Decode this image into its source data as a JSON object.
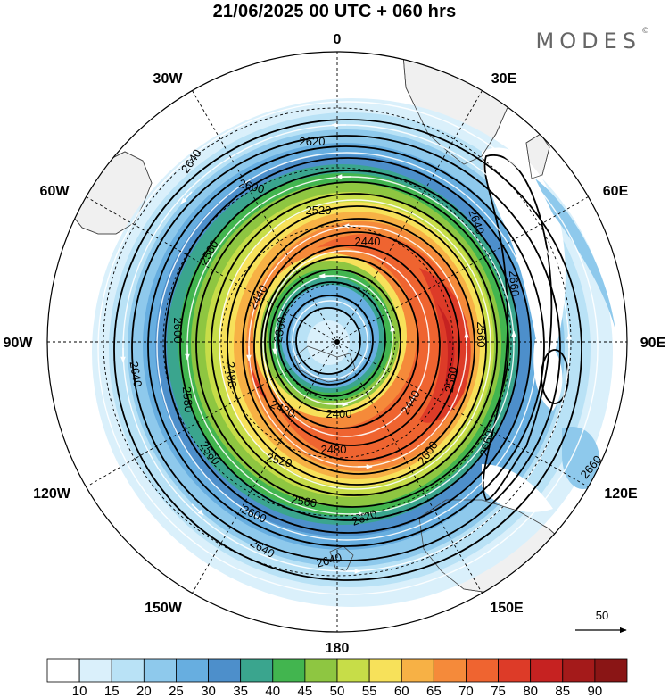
{
  "title": "21/06/2025  00 UTC  + 060 hrs",
  "logo": "MODES",
  "longitude_labels": [
    {
      "text": "0",
      "lon": 0
    },
    {
      "text": "30E",
      "lon": 30
    },
    {
      "text": "60E",
      "lon": 60
    },
    {
      "text": "90E",
      "lon": 90
    },
    {
      "text": "120E",
      "lon": 120
    },
    {
      "text": "150E",
      "lon": 150
    },
    {
      "text": "180",
      "lon": 180
    },
    {
      "text": "150W",
      "lon": -150
    },
    {
      "text": "120W",
      "lon": -120
    },
    {
      "text": "90W",
      "lon": -90
    },
    {
      "text": "60W",
      "lon": -60
    },
    {
      "text": "30W",
      "lon": -30
    }
  ],
  "wind_speed_levels": [
    10,
    15,
    20,
    25,
    30,
    35,
    40,
    45,
    50,
    55,
    60,
    65,
    70,
    75,
    80,
    85,
    90
  ],
  "wind_speed_colors": [
    "#ffffff",
    "#daf0fb",
    "#b9e2f6",
    "#8ec9ec",
    "#67aee0",
    "#4d8fcb",
    "#3aa58e",
    "#42b54f",
    "#8ec641",
    "#c7dd48",
    "#f7e15a",
    "#f7b145",
    "#f58a3a",
    "#ef6430",
    "#dd3b28",
    "#c62221",
    "#a41a1a",
    "#8a1515"
  ],
  "reference_vector": "50",
  "contours": [
    {
      "label": "2620",
      "ring": 1
    },
    {
      "label": "2640",
      "ring": 2
    },
    {
      "label": "2600",
      "ring": 3
    },
    {
      "label": "2560",
      "ring": 4
    },
    {
      "label": "2520",
      "ring": 5
    },
    {
      "label": "2480",
      "ring": 6
    },
    {
      "label": "2440",
      "ring": 7
    },
    {
      "label": "2420",
      "ring": 8
    },
    {
      "label": "2400",
      "ring": 9
    },
    {
      "label": "2360",
      "ring": 10
    },
    {
      "label": "2580",
      "ring": 11
    },
    {
      "label": "2660",
      "ring": 12
    }
  ],
  "map_colors": {
    "land": "#f0f0f0",
    "coast": "#444444",
    "grid": "#000000"
  }
}
